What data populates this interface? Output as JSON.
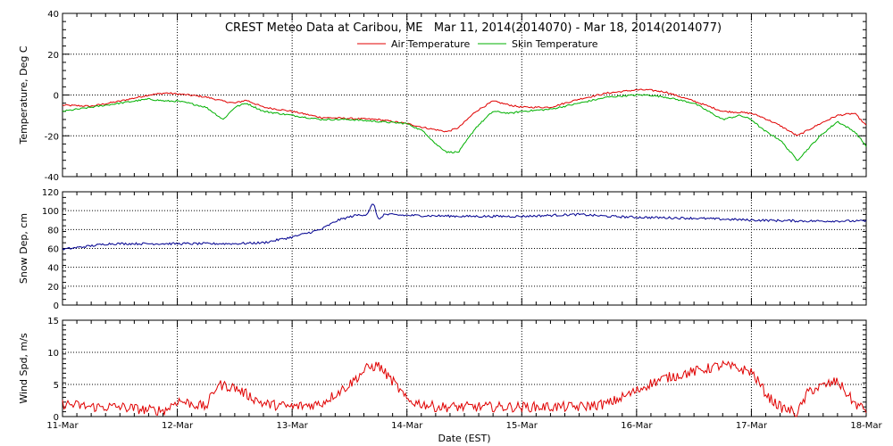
{
  "chart_data": {
    "type": "line",
    "title": "CREST Meteo Data at Caribou, ME   Mar 11, 2014(2014070) - Mar 18, 2014(2014077)",
    "xlabel": "Date (EST)",
    "x_tick_labels": [
      "11-Mar",
      "12-Mar",
      "13-Mar",
      "14-Mar",
      "15-Mar",
      "16-Mar",
      "17-Mar",
      "18-Mar"
    ],
    "x_unit": "days since 11-Mar 00:00",
    "xlim": [
      0,
      7
    ],
    "grid": true,
    "panels": [
      {
        "name": "temperature",
        "ylabel": "Temperature, Deg C",
        "ylim": [
          -40,
          40
        ],
        "yticks": [
          -40,
          -20,
          0,
          20,
          40
        ],
        "legend": "top-center",
        "series": [
          {
            "name": "Air Temperature",
            "color": "#e00000",
            "x": [
              0,
              0.25,
              0.5,
              0.75,
              0.9,
              1.0,
              1.1,
              1.25,
              1.4,
              1.5,
              1.6,
              1.75,
              2.0,
              2.25,
              2.5,
              2.75,
              3.0,
              3.15,
              3.25,
              3.35,
              3.45,
              3.6,
              3.75,
              3.9,
              4.0,
              4.25,
              4.5,
              4.75,
              5.0,
              5.1,
              5.25,
              5.5,
              5.75,
              5.9,
              6.0,
              6.1,
              6.25,
              6.4,
              6.6,
              6.75,
              6.9,
              7.0
            ],
            "y": [
              -5,
              -5.5,
              -3,
              0,
              1,
              0.5,
              0,
              -1,
              -3,
              -4,
              -2.5,
              -6,
              -8,
              -11,
              -11.5,
              -12,
              -14,
              -16,
              -17,
              -18,
              -16,
              -8,
              -3,
              -5,
              -6,
              -6,
              -2,
              1,
              2.5,
              2.5,
              1.5,
              -3,
              -8,
              -8.5,
              -9,
              -11,
              -15,
              -20,
              -14,
              -10,
              -9,
              -15
            ]
          },
          {
            "name": "Skin Temperature",
            "color": "#00b000",
            "x": [
              0,
              0.25,
              0.5,
              0.75,
              0.9,
              1.0,
              1.1,
              1.25,
              1.4,
              1.5,
              1.6,
              1.75,
              2.0,
              2.25,
              2.5,
              2.75,
              3.0,
              3.15,
              3.25,
              3.35,
              3.45,
              3.6,
              3.75,
              3.9,
              4.0,
              4.25,
              4.5,
              4.75,
              5.0,
              5.1,
              5.25,
              5.5,
              5.75,
              5.9,
              6.0,
              6.1,
              6.25,
              6.4,
              6.6,
              6.75,
              6.9,
              7.0
            ],
            "y": [
              -8,
              -6,
              -4,
              -2,
              -3,
              -3,
              -4,
              -6,
              -12,
              -6,
              -4,
              -8,
              -10,
              -12,
              -12,
              -13,
              -14,
              -18,
              -24,
              -28,
              -28,
              -16,
              -8,
              -9,
              -8,
              -7,
              -4,
              -1,
              0,
              0,
              -1,
              -4,
              -12,
              -10,
              -12,
              -17,
              -22,
              -32,
              -20,
              -13,
              -18,
              -25
            ]
          }
        ]
      },
      {
        "name": "snow-depth",
        "ylabel": "Snow Dep, cm",
        "ylim": [
          0,
          120
        ],
        "yticks": [
          0,
          20,
          40,
          60,
          80,
          100,
          120
        ],
        "series": [
          {
            "name": "Snow Depth",
            "color": "#000090",
            "x": [
              0,
              0.2,
              0.4,
              0.6,
              1.0,
              1.5,
              1.75,
              2.0,
              2.25,
              2.4,
              2.55,
              2.65,
              2.7,
              2.72,
              2.75,
              2.8,
              3.0,
              3.5,
              4.0,
              4.25,
              4.5,
              4.75,
              5.0,
              5.5,
              6.0,
              6.5,
              7.0
            ],
            "y": [
              59,
              62,
              65,
              65,
              65,
              65,
              66,
              72,
              80,
              90,
              95,
              96,
              107,
              104,
              90,
              96,
              95,
              94,
              94,
              95,
              96,
              94,
              93,
              92,
              90,
              89,
              89
            ]
          }
        ]
      },
      {
        "name": "wind-speed",
        "ylabel": "Wind Spd, m/s",
        "ylim": [
          0,
          15
        ],
        "yticks": [
          0,
          5,
          10,
          15
        ],
        "series": [
          {
            "name": "Wind Speed",
            "color": "#e00000",
            "x": [
              0,
              0.25,
              0.5,
              0.75,
              0.9,
              1.0,
              1.25,
              1.35,
              1.5,
              1.75,
              2.0,
              2.25,
              2.5,
              2.65,
              2.75,
              2.9,
              3.0,
              3.25,
              3.5,
              4.0,
              4.5,
              4.75,
              5.0,
              5.1,
              5.25,
              5.5,
              5.75,
              6.0,
              6.15,
              6.25,
              6.4,
              6.5,
              6.75,
              6.9,
              7.0
            ],
            "y": [
              2,
              1.5,
              1.5,
              1,
              1,
              2.5,
              1.5,
              5,
              4.5,
              2,
              1.5,
              2,
              5,
              7.5,
              8,
              5,
              2.5,
              1.5,
              1.5,
              1.5,
              1.5,
              2,
              4,
              5,
              6,
              7,
              8,
              7,
              3,
              1.5,
              0.5,
              4,
              5.5,
              2,
              1
            ]
          }
        ]
      }
    ]
  }
}
